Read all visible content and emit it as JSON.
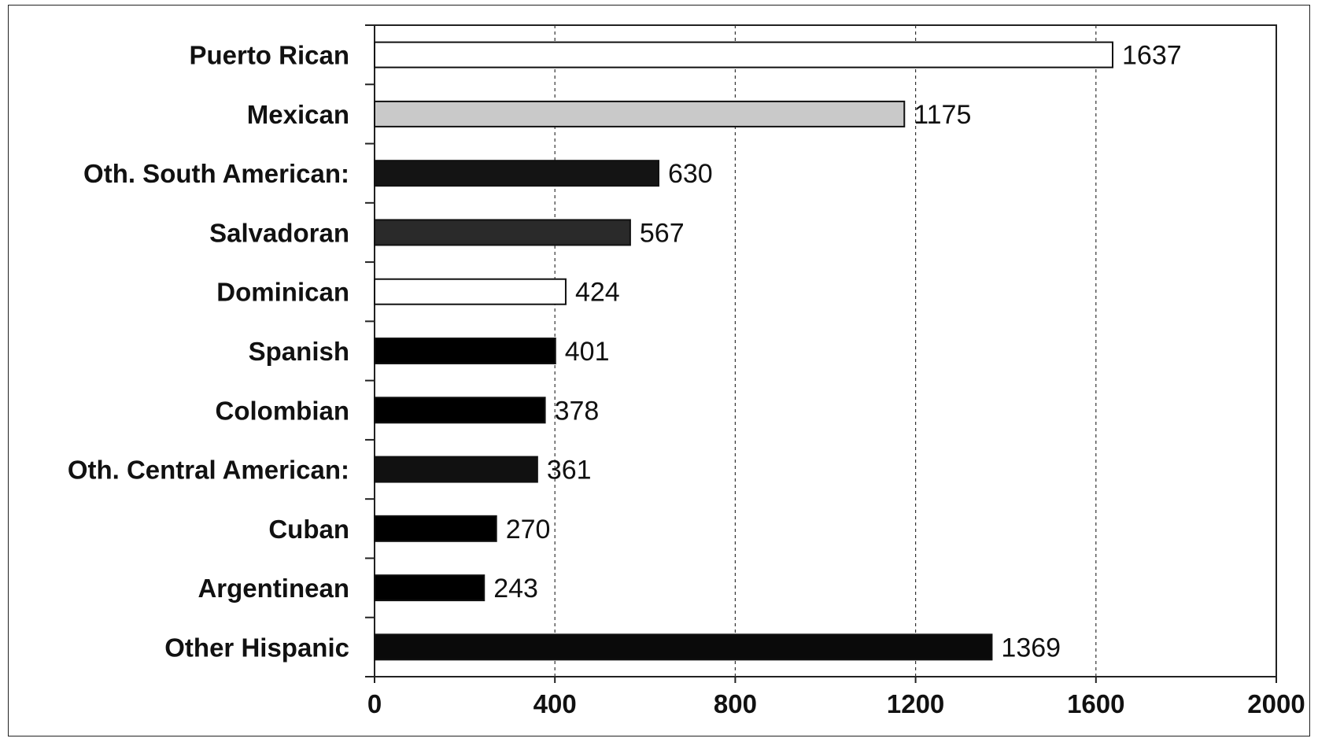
{
  "chart_data": {
    "type": "bar",
    "orientation": "horizontal",
    "categories": [
      "Puerto Rican",
      "Mexican",
      "Oth. South American:",
      "Salvadoran",
      "Dominican",
      "Spanish",
      "Colombian",
      "Oth. Central American:",
      "Cuban",
      "Argentinean",
      "Other Hispanic"
    ],
    "values": [
      1637,
      1175,
      630,
      567,
      424,
      401,
      378,
      361,
      270,
      243,
      1369
    ],
    "data_labels": [
      "1637",
      "1175",
      "630",
      "567",
      "424",
      "401",
      "378",
      "361",
      "270",
      "243",
      "1369"
    ],
    "bar_colors": [
      "#ffffff",
      "#c9c9c9",
      "#141414",
      "#2a2a2a",
      "#ffffff",
      "#000000",
      "#000000",
      "#111111",
      "#000000",
      "#000000",
      "#0a0a0a"
    ],
    "xlim": [
      0,
      2000
    ],
    "x_ticks": [
      0,
      400,
      800,
      1200,
      1600,
      2000
    ],
    "x_tick_labels": [
      "0",
      "400",
      "800",
      "1200",
      "1600",
      "2000"
    ],
    "grid": "vertical dashed",
    "legend": "none"
  }
}
